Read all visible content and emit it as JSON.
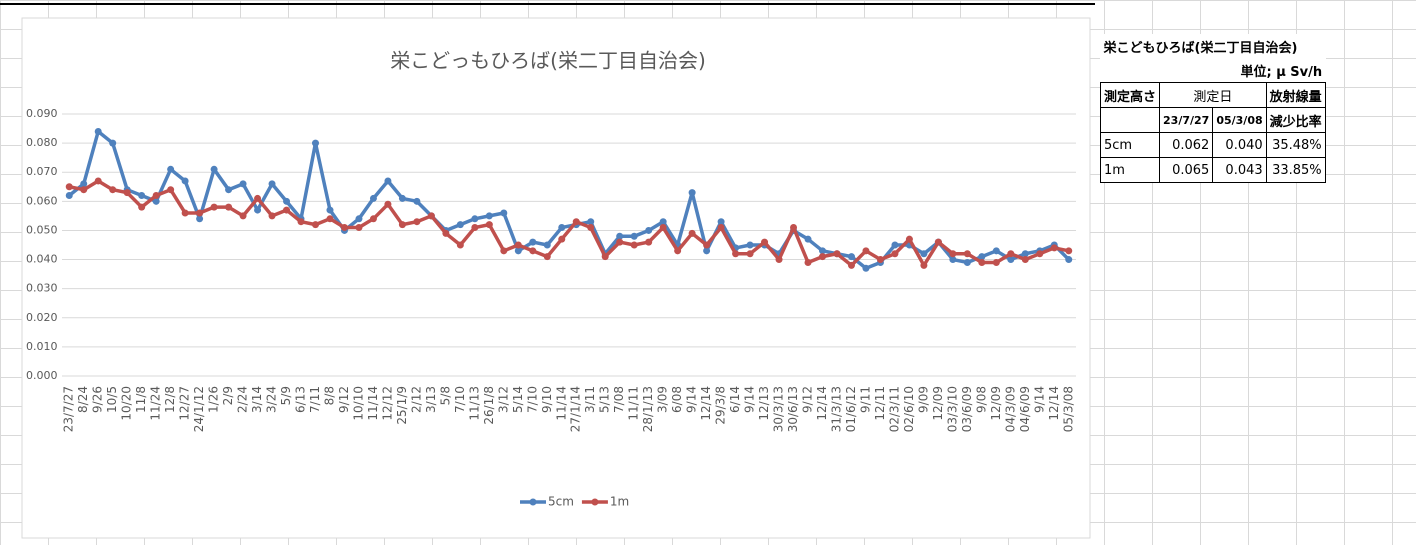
{
  "chart_data": {
    "type": "line",
    "title": "栄こどっもひろば(栄二丁目自治会)",
    "categories": [
      "23/7/27",
      "8/24",
      "9/26",
      "10/5",
      "10/20",
      "11/8",
      "11/24",
      "12/8",
      "12/27",
      "24/1/12",
      "1/26",
      "2/9",
      "2/24",
      "3/14",
      "3/24",
      "5/9",
      "6/13",
      "7/11",
      "8/8",
      "9/12",
      "10/10",
      "11/14",
      "12/12",
      "25/1/9",
      "2/12",
      "3/13",
      "5/8",
      "7/10",
      "11/13",
      "26/1/8",
      "3/12",
      "5/14",
      "7/10",
      "9/10",
      "11/14",
      "27/1/14",
      "3/11",
      "5/13",
      "7/08",
      "11/11",
      "28/1/13",
      "3/09",
      "6/08",
      "9/14",
      "12/14",
      "29/3/8",
      "6/14",
      "9/14",
      "12/13",
      "30/3/13",
      "30/6/13",
      "9/12",
      "12/14",
      "31/3/13",
      "01/6/12",
      "9/11",
      "12/11",
      "02/3/11",
      "02/6/10",
      "9/09",
      "12/09",
      "03/3/10",
      "03/6/09",
      "9/08",
      "12/09",
      "04/3/09",
      "04/6/09",
      "9/14",
      "12/14",
      "05/3/08"
    ],
    "series": [
      {
        "name": "5cm",
        "color": "#4f81bd",
        "values": [
          0.062,
          0.066,
          0.084,
          0.08,
          0.064,
          0.062,
          0.06,
          0.071,
          0.067,
          0.054,
          0.071,
          0.064,
          0.066,
          0.057,
          0.066,
          0.06,
          0.054,
          0.08,
          0.057,
          0.05,
          0.054,
          0.061,
          0.067,
          0.061,
          0.06,
          0.055,
          0.05,
          0.052,
          0.054,
          0.055,
          0.056,
          0.043,
          0.046,
          0.045,
          0.051,
          0.052,
          0.053,
          0.042,
          0.048,
          0.048,
          0.05,
          0.053,
          0.045,
          0.063,
          0.043,
          0.053,
          0.044,
          0.045,
          0.045,
          0.042,
          0.05,
          0.047,
          0.043,
          0.042,
          0.041,
          0.037,
          0.039,
          0.045,
          0.045,
          0.042,
          0.046,
          0.04,
          0.039,
          0.041,
          0.043,
          0.04,
          0.042,
          0.043,
          0.045,
          0.04
        ]
      },
      {
        "name": "1m",
        "color": "#c0504d",
        "values": [
          0.065,
          0.064,
          0.067,
          0.064,
          0.063,
          0.058,
          0.062,
          0.064,
          0.056,
          0.056,
          0.058,
          0.058,
          0.055,
          0.061,
          0.055,
          0.057,
          0.053,
          0.052,
          0.054,
          0.051,
          0.051,
          0.054,
          0.059,
          0.052,
          0.053,
          0.055,
          0.049,
          0.045,
          0.051,
          0.052,
          0.043,
          0.045,
          0.043,
          0.041,
          0.047,
          0.053,
          0.051,
          0.041,
          0.046,
          0.045,
          0.046,
          0.051,
          0.043,
          0.049,
          0.045,
          0.051,
          0.042,
          0.042,
          0.046,
          0.04,
          0.051,
          0.039,
          0.041,
          0.042,
          0.038,
          0.043,
          0.04,
          0.042,
          0.047,
          0.038,
          0.046,
          0.042,
          0.042,
          0.039,
          0.039,
          0.042,
          0.04,
          0.042,
          0.044,
          0.043
        ]
      }
    ],
    "ylim": [
      0,
      0.09
    ],
    "yticks": [
      {
        "value": 0,
        "label": "0.000"
      },
      {
        "value": 0.01,
        "label": "0.010"
      },
      {
        "value": 0.02,
        "label": "0.020"
      },
      {
        "value": 0.03,
        "label": "0.030"
      },
      {
        "value": 0.04,
        "label": "0.040"
      },
      {
        "value": 0.05,
        "label": "0.050"
      },
      {
        "value": 0.06,
        "label": "0.060"
      },
      {
        "value": 0.07,
        "label": "0.070"
      },
      {
        "value": 0.08,
        "label": "0.080"
      },
      {
        "value": 0.09,
        "label": "0.090"
      }
    ],
    "grid": true,
    "legend": "bottom"
  },
  "table": {
    "title": "栄こどもひろば(栄二丁目自治会)",
    "unit": "単位; μ Sv/h",
    "header": {
      "height": "測定高さ",
      "date": "測定日",
      "dose": "放射線量",
      "date1": "23/7/27",
      "date2": "05/3/08",
      "ratio": "減少比率"
    },
    "rows": [
      [
        "5cm",
        "0.062",
        "0.040",
        "35.48%"
      ],
      [
        "1m",
        "0.065",
        "0.043",
        "33.85%"
      ]
    ]
  }
}
